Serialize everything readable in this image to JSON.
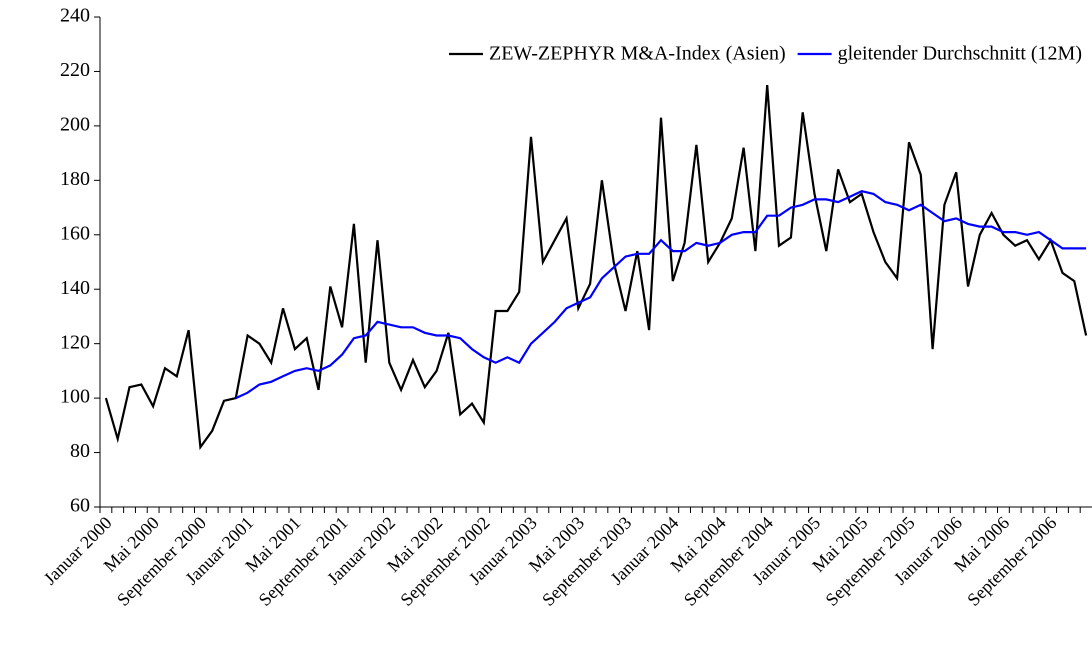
{
  "chart_data": {
    "type": "line",
    "categories": [
      "Januar 2000",
      null,
      null,
      null,
      "Mai 2000",
      null,
      null,
      null,
      "September 2000",
      null,
      null,
      null,
      "Januar 2001",
      null,
      null,
      null,
      "Mai 2001",
      null,
      null,
      null,
      "September 2001",
      null,
      null,
      null,
      "Januar 2002",
      null,
      null,
      null,
      "Mai 2002",
      null,
      null,
      null,
      "September 2002",
      null,
      null,
      null,
      "Januar 2003",
      null,
      null,
      null,
      "Mai 2003",
      null,
      null,
      null,
      "September 2003",
      null,
      null,
      null,
      "Januar 2004",
      null,
      null,
      null,
      "Mai 2004",
      null,
      null,
      null,
      "September 2004",
      null,
      null,
      null,
      "Januar 2005",
      null,
      null,
      null,
      "Mai 2005",
      null,
      null,
      null,
      "September 2005",
      null,
      null,
      null,
      "Januar 2006",
      null,
      null,
      null,
      "Mai 2006",
      null,
      null,
      null,
      "September 2006",
      null,
      null,
      null
    ],
    "series": [
      {
        "name": "ZEW-ZEPHYR M&A-Index (Asien)",
        "color": "#000000",
        "values": [
          100,
          85,
          104,
          105,
          97,
          111,
          108,
          125,
          82,
          88,
          99,
          100,
          123,
          120,
          113,
          133,
          118,
          122,
          103,
          141,
          126,
          164,
          113,
          158,
          113,
          103,
          114,
          104,
          110,
          124,
          94,
          98,
          91,
          132,
          132,
          139,
          196,
          150,
          158,
          166,
          133,
          142,
          180,
          150,
          132,
          154,
          125,
          203,
          143,
          157,
          193,
          150,
          157,
          166,
          192,
          154,
          215,
          156,
          159,
          205,
          175,
          154,
          184,
          172,
          175,
          161,
          150,
          144,
          194,
          182,
          118,
          171,
          183,
          141,
          160,
          168,
          160,
          156,
          158,
          151,
          158,
          146,
          143,
          123
        ]
      },
      {
        "name": "gleitender Durchschnitt (12M)",
        "color": "#0000ff",
        "values": [
          null,
          null,
          null,
          null,
          null,
          null,
          null,
          null,
          null,
          null,
          null,
          100,
          102,
          105,
          106,
          108,
          110,
          111,
          110,
          112,
          116,
          122,
          123,
          128,
          127,
          126,
          126,
          124,
          123,
          123,
          122,
          118,
          115,
          113,
          115,
          113,
          120,
          124,
          128,
          133,
          135,
          137,
          144,
          148,
          152,
          153,
          153,
          158,
          154,
          154,
          157,
          156,
          157,
          160,
          161,
          161,
          167,
          167,
          170,
          171,
          173,
          173,
          172,
          174,
          176,
          175,
          172,
          171,
          169,
          171,
          168,
          165,
          166,
          164,
          163,
          163,
          161,
          161,
          160,
          161,
          158,
          155,
          155,
          155
        ]
      }
    ],
    "ylim": [
      60,
      240
    ],
    "yticks": [
      60,
      80,
      100,
      120,
      140,
      160,
      180,
      200,
      220,
      240
    ],
    "grid": false,
    "legend": "upper right"
  }
}
